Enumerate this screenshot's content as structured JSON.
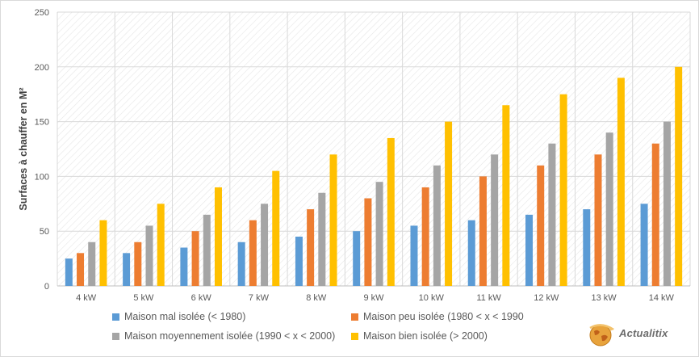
{
  "chart_data": {
    "type": "bar",
    "title": "",
    "xlabel": "",
    "ylabel": "Surfaces à chauffer en M²",
    "ylim": [
      0,
      250
    ],
    "yticks": [
      "0",
      "50",
      "100",
      "150",
      "200",
      "250"
    ],
    "grid": true,
    "legend_position": "bottom",
    "categories": [
      "4 kW",
      "5 kW",
      "6 kW",
      "7 kW",
      "8 kW",
      "9 kW",
      "10 kW",
      "11 kW",
      "12 kW",
      "13 kW",
      "14 kW"
    ],
    "series": [
      {
        "name": "Maison mal isolée (< 1980)",
        "color": "#5b9bd5",
        "values": [
          25,
          30,
          35,
          40,
          45,
          50,
          55,
          60,
          65,
          70,
          75
        ]
      },
      {
        "name": "Maison peu isolée (1980 < x < 1990",
        "color": "#ed7d31",
        "values": [
          30,
          40,
          50,
          60,
          70,
          80,
          90,
          100,
          110,
          120,
          130
        ]
      },
      {
        "name": "Maison moyennement isolée (1990 < x < 2000)",
        "color": "#a5a5a5",
        "values": [
          40,
          55,
          65,
          75,
          85,
          95,
          110,
          120,
          130,
          140,
          150
        ]
      },
      {
        "name": "Maison bien isolée (> 2000)",
        "color": "#ffc000",
        "values": [
          60,
          75,
          90,
          105,
          120,
          135,
          150,
          165,
          175,
          190,
          200
        ]
      }
    ]
  },
  "logo": {
    "text": "Actualitix",
    "icon": "globe-icon"
  }
}
